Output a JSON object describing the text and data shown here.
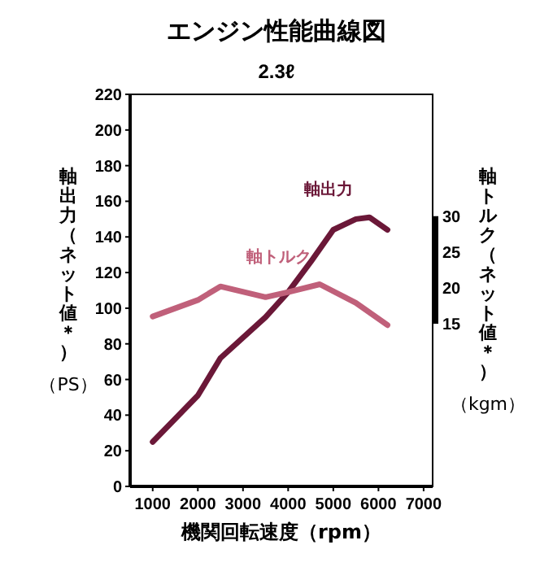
{
  "chart_data": {
    "type": "line",
    "title": "エンジン性能曲線図",
    "subtitle": "2.3ℓ",
    "xlabel": "機関回転速度（rpm）",
    "ylabel": "軸出力（ネット値＊）（PS）",
    "y2label": "軸トルク（ネット値＊）（kgm）",
    "xlim": [
      500,
      7200
    ],
    "xticks": [
      1000,
      2000,
      3000,
      4000,
      5000,
      6000,
      7000
    ],
    "ylim": [
      0,
      220
    ],
    "yticks": [
      0,
      20,
      40,
      60,
      80,
      100,
      120,
      140,
      160,
      180,
      200,
      220
    ],
    "y2lim": [
      -7.7,
      47
    ],
    "y2ticks": [
      15,
      20,
      25,
      30
    ],
    "grid": false,
    "marker": "none",
    "line_style": "solid",
    "series": [
      {
        "name": "軸出力",
        "color": "#6b1838",
        "x": [
          1000,
          2000,
          2500,
          3500,
          4000,
          4500,
          5000,
          5500,
          5800,
          6200
        ],
        "values": [
          25,
          51,
          72,
          95,
          109,
          126,
          144,
          150,
          151,
          144
        ]
      },
      {
        "name": "軸トルク",
        "color": "#c0607a",
        "axis": "y2",
        "x": [
          1000,
          2000,
          2500,
          3500,
          4000,
          4700,
          5500,
          6200
        ],
        "values": [
          16,
          18.3,
          20.2,
          18.7,
          19.4,
          20.5,
          17.9,
          14.8
        ]
      }
    ]
  }
}
